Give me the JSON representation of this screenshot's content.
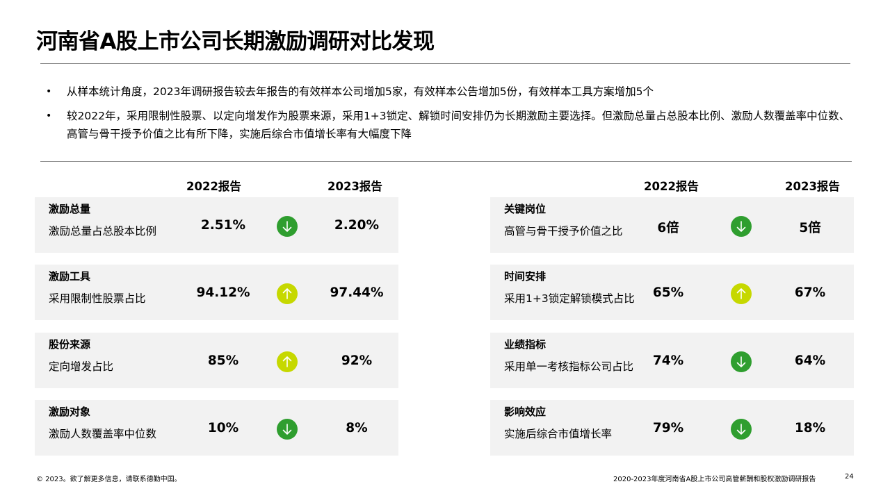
{
  "title": "河南省A股上市公司长期激励调研对比发现",
  "bullets": [
    "从样本统计角度，2023年调研报告较去年报告的有效样本公司增加5家，有效样本公告增加5份，有效样本工具方案增加5个",
    "较2022年，采用限制性股票、以定向增发作为股票来源，采用1+3锁定、解锁时间安排仍为长期激励主要选择。但激励总量占总股本比例、激励人数覆盖率中位数、高管与骨干授予价值之比有所下降，实施后综合市值增长率有大幅度下降"
  ],
  "column_headers": {
    "y2022": "2022报告",
    "y2023": "2023报告"
  },
  "colors": {
    "down": "#2f9e2f",
    "up": "#c6d800",
    "card": "#f2f2f2"
  },
  "left_cards": [
    {
      "category": "激励总量",
      "description": "激励总量占总股本比例",
      "v2022": "2.51%",
      "v2023": "2.20%",
      "trend": "down",
      "icon": "arrow-down-icon"
    },
    {
      "category": "激励工具",
      "description": "采用限制性股票占比",
      "v2022": "94.12%",
      "v2023": "97.44%",
      "trend": "up",
      "icon": "arrow-up-icon"
    },
    {
      "category": "股份来源",
      "description": "定向增发占比",
      "v2022": "85%",
      "v2023": "92%",
      "trend": "up",
      "icon": "arrow-up-icon"
    },
    {
      "category": "激励对象",
      "description": "激励人数覆盖率中位数",
      "v2022": "10%",
      "v2023": "8%",
      "trend": "down",
      "icon": "arrow-down-icon"
    }
  ],
  "right_cards": [
    {
      "category": "关键岗位",
      "description": "高管与骨干授予价值之比",
      "v2022": "6倍",
      "v2023": "5倍",
      "trend": "down",
      "icon": "arrow-down-icon"
    },
    {
      "category": "时间安排",
      "description": "采用1+3锁定解锁模式占比",
      "v2022": "65%",
      "v2023": "67%",
      "trend": "up",
      "icon": "arrow-up-icon"
    },
    {
      "category": "业绩指标",
      "description": "采用单一考核指标公司占比",
      "v2022": "74%",
      "v2023": "64%",
      "trend": "down",
      "icon": "arrow-down-icon"
    },
    {
      "category": "影响效应",
      "description": "实施后综合市值增长率",
      "v2022": "79%",
      "v2023": "18%",
      "trend": "down",
      "icon": "arrow-down-icon"
    }
  ],
  "footer": {
    "left": "© 2023。欲了解更多信息，请联系德勤中国。",
    "right": "2020-2023年度河南省A股上市公司高管薪酬和股权激励调研报告",
    "page": "24"
  }
}
